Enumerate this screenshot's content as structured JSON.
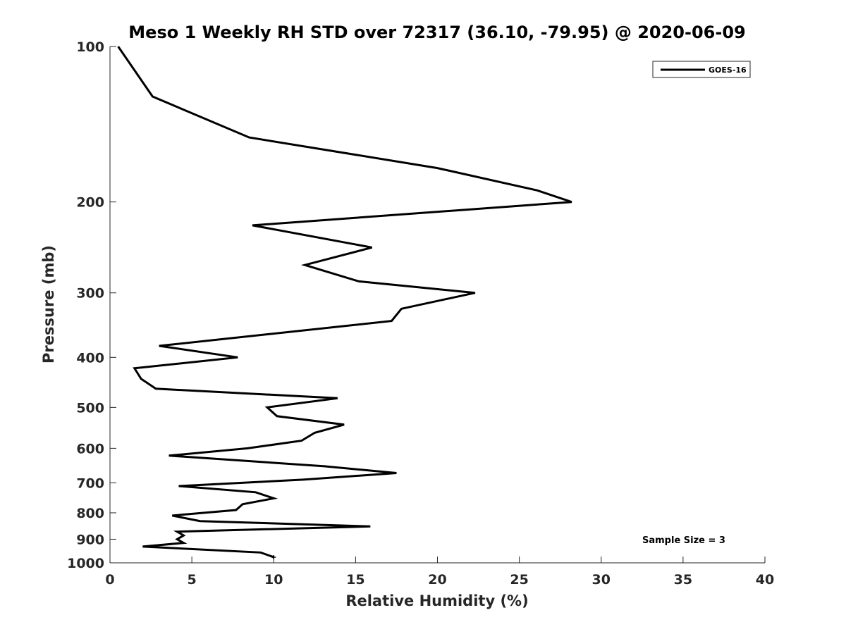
{
  "chart_data": {
    "type": "line",
    "title": "Meso 1 Weekly RH STD over 72317 (36.10, -79.95) @ 2020-06-09",
    "xlabel": "Relative Humidity (%)",
    "ylabel": "Pressure (mb)",
    "xlim": [
      0,
      40
    ],
    "ylim": [
      1000,
      100
    ],
    "y_scale": "log",
    "y_reversed": true,
    "grid": false,
    "x_ticks": [
      "0",
      "5",
      "10",
      "15",
      "20",
      "25",
      "30",
      "35",
      "40"
    ],
    "y_ticks": [
      "100",
      "200",
      "300",
      "400",
      "500",
      "600",
      "700",
      "800",
      "900",
      "1000"
    ],
    "legend": {
      "position": "top-right",
      "entries": [
        "GOES-16"
      ]
    },
    "annotation": "Sample Size = 3",
    "series": [
      {
        "name": "GOES-16",
        "color": "#000000",
        "x": [
          0.5,
          2.6,
          8.5,
          20.0,
          26.1,
          28.2,
          8.7,
          16.0,
          11.9,
          15.2,
          22.3,
          17.8,
          17.2,
          3.0,
          7.8,
          1.5,
          1.9,
          2.8,
          13.9,
          9.6,
          10.2,
          14.3,
          12.5,
          11.7,
          8.4,
          3.6,
          13.1,
          17.5,
          11.8,
          4.2,
          8.9,
          10.0,
          8.1,
          7.7,
          3.8,
          5.5,
          15.9,
          4.1,
          4.5,
          4.1,
          4.5,
          2.0,
          9.2,
          10.0
        ],
        "y": [
          100,
          125,
          150,
          172,
          190,
          200,
          222,
          245,
          265,
          285,
          300,
          322,
          340,
          380,
          400,
          420,
          440,
          460,
          480,
          500,
          520,
          540,
          560,
          580,
          600,
          620,
          650,
          670,
          690,
          710,
          730,
          750,
          770,
          790,
          810,
          830,
          850,
          870,
          885,
          900,
          915,
          930,
          955,
          975
        ]
      }
    ]
  }
}
